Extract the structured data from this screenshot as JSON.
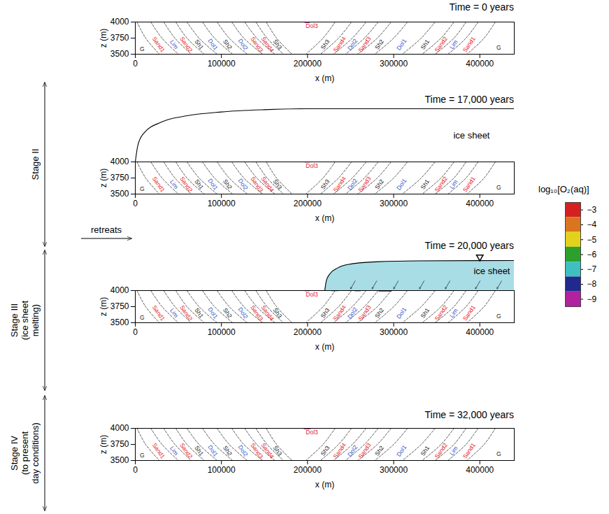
{
  "chart_data": {
    "type": "cross_section_panels",
    "xlabel": "x (m)",
    "ylabel": "z (m)",
    "xlim": [
      0,
      440000
    ],
    "xticks": [
      0,
      100000,
      200000,
      300000,
      400000
    ],
    "ylim": [
      3500,
      4000
    ],
    "yticks": [
      3500,
      3750,
      4000
    ],
    "boundary_z": [
      4000,
      3750,
      3500
    ],
    "boundaries_x": [
      [
        2000,
        12000,
        28000
      ],
      [
        18000,
        31000,
        50000
      ],
      [
        33000,
        46000,
        65000
      ],
      [
        47000,
        60000,
        80000
      ],
      [
        60000,
        74000,
        95000
      ],
      [
        78000,
        92000,
        113000
      ],
      [
        95000,
        109000,
        130000
      ],
      [
        112000,
        126000,
        148000
      ],
      [
        127000,
        141000,
        162000
      ],
      [
        140000,
        153000,
        172000
      ],
      [
        152000,
        164000,
        182000
      ],
      [
        232000,
        218000,
        198000
      ],
      [
        251000,
        236000,
        215000
      ],
      [
        268000,
        252000,
        230000
      ],
      [
        282000,
        266000,
        244000
      ],
      [
        297000,
        281000,
        258000
      ],
      [
        316000,
        300000,
        278000
      ],
      [
        348000,
        332000,
        310000
      ],
      [
        370000,
        355000,
        333000
      ],
      [
        384000,
        370000,
        348000
      ],
      [
        398000,
        384000,
        363000
      ],
      [
        418000,
        405000,
        385000
      ]
    ],
    "formation_labels_left": [
      {
        "text": "Sand1",
        "x": 27000,
        "z": 3650,
        "color": "#e8202a"
      },
      {
        "text": "Lim",
        "x": 45000,
        "z": 3650,
        "color": "#3355cc"
      },
      {
        "text": "Sand2",
        "x": 59000,
        "z": 3650,
        "color": "#e8202a"
      },
      {
        "text": "Sh1",
        "x": 74000,
        "z": 3650,
        "color": "#222222"
      },
      {
        "text": "Dol1",
        "x": 90000,
        "z": 3650,
        "color": "#3355cc"
      },
      {
        "text": "Sh2",
        "x": 107000,
        "z": 3650,
        "color": "#222222"
      },
      {
        "text": "Dol2",
        "x": 125000,
        "z": 3650,
        "color": "#3355cc"
      },
      {
        "text": "Sand3",
        "x": 141000,
        "z": 3650,
        "color": "#e8202a"
      },
      {
        "text": "Sand4",
        "x": 153500,
        "z": 3650,
        "color": "#e8202a"
      },
      {
        "text": "Sh3",
        "x": 165000,
        "z": 3650,
        "color": "#222222"
      }
    ],
    "formation_labels_right": [
      {
        "text": "Sh3",
        "x": 220500,
        "z": 3650,
        "color": "#222222"
      },
      {
        "text": "Sand4",
        "x": 237300,
        "z": 3650,
        "color": "#e8202a"
      },
      {
        "text": "Dol2",
        "x": 252200,
        "z": 3650,
        "color": "#3355cc"
      },
      {
        "text": "Sand3",
        "x": 266400,
        "z": 3650,
        "color": "#e8202a"
      },
      {
        "text": "Sh2",
        "x": 283400,
        "z": 3650,
        "color": "#222222"
      },
      {
        "text": "Dol1",
        "x": 309200,
        "z": 3650,
        "color": "#3355cc"
      },
      {
        "text": "Sh1",
        "x": 336500,
        "z": 3650,
        "color": "#222222"
      },
      {
        "text": "Sand2",
        "x": 355100,
        "z": 3650,
        "color": "#e8202a"
      },
      {
        "text": "Lim",
        "x": 369700,
        "z": 3650,
        "color": "#3355cc"
      },
      {
        "text": "Sand1",
        "x": 387600,
        "z": 3650,
        "color": "#e8202a"
      }
    ],
    "formation_labels_flat": [
      {
        "text": "G",
        "x": 8000,
        "z": 3580,
        "color": "#222222"
      },
      {
        "text": "Dol3",
        "x": 205000,
        "z": 3935,
        "color": "#e8202a"
      },
      {
        "text": "G",
        "x": 422000,
        "z": 3600,
        "color": "#222222"
      }
    ],
    "color_bar": {
      "label": "log₁₀[O₂(aq)]",
      "range": [
        -9.5,
        -2.5
      ],
      "ticks": [
        {
          "value": -3,
          "label": "−3"
        },
        {
          "value": -4,
          "label": "−4"
        },
        {
          "value": -5,
          "label": "−5"
        },
        {
          "value": -6,
          "label": "−6"
        },
        {
          "value": -7,
          "label": "−7"
        },
        {
          "value": -8,
          "label": "−8"
        },
        {
          "value": -9,
          "label": "−9"
        }
      ],
      "colors": [
        "#d62020",
        "#d9741f",
        "#e3d21b",
        "#2ca02c",
        "#3fbfbf",
        "#1f2a8c",
        "#b0229e"
      ]
    },
    "panels": [
      {
        "title": "Time = 0 years",
        "o2_patches": [
          {
            "x0": 197000,
            "x1": 203000,
            "z0": 3980,
            "z1": 4000,
            "log10_o2": -9
          },
          {
            "x0": 436000,
            "x1": 440000,
            "z0": 3992,
            "z1": 4000,
            "log10_o2": -8
          }
        ]
      },
      {
        "title": "Time = 17,000 years",
        "stage": {
          "lines": [
            "Stage II"
          ]
        },
        "ice_sheet": {
          "label": "ice sheet",
          "x": [
            0,
            3000,
            10000,
            30000,
            60000,
            100000,
            150000,
            200000,
            440000
          ],
          "z": [
            4000,
            4260,
            4450,
            4620,
            4720,
            4780,
            4815,
            4830,
            4830
          ]
        },
        "o2_patches": [
          {
            "x0": 197000,
            "x1": 203000,
            "z0": 3985,
            "z1": 4000,
            "log10_o2": -9
          },
          {
            "x0": 436000,
            "x1": 440000,
            "z0": 3992,
            "z1": 4000,
            "log10_o2": -8
          }
        ]
      },
      {
        "title": "Time = 20,000 years",
        "stage": {
          "lines": [
            "Stage III",
            "(ice sheet",
            "melting)"
          ]
        },
        "arrow_label": "retreats",
        "ice_sheet": {
          "label": "ice sheet",
          "color": "#a8dde6",
          "x": [
            220000,
            222000,
            226000,
            235000,
            250000,
            280000,
            330000,
            440000
          ],
          "z": [
            4000,
            4160,
            4260,
            4350,
            4410,
            4445,
            4460,
            4465
          ],
          "recharge_arrows_x": [
            250000,
            275000,
            300000,
            330000,
            360000,
            395000,
            420000
          ],
          "water_table_x": 400000
        },
        "o2_patches": [
          {
            "x0": 197000,
            "x1": 203000,
            "z0": 3985,
            "z1": 4000,
            "log10_o2": -9
          },
          {
            "x0": 222000,
            "x1": 228000,
            "z0": 3990,
            "z1": 4000,
            "log10_o2": -8
          },
          {
            "x0": 236000,
            "x1": 250000,
            "z0": 3992,
            "z1": 4000,
            "log10_o2": -9
          },
          {
            "x0": 255000,
            "x1": 262000,
            "z0": 3985,
            "z1": 4000,
            "log10_o2": -8
          },
          {
            "x0": 262000,
            "x1": 270000,
            "z0": 3990,
            "z1": 4000,
            "log10_o2": -9
          },
          {
            "x0": 283000,
            "x1": 298000,
            "z0": 3978,
            "z1": 4000,
            "log10_o2": -9
          },
          {
            "x0": 298000,
            "x1": 310000,
            "z0": 3993,
            "z1": 4000,
            "log10_o2": -7
          },
          {
            "x0": 320000,
            "x1": 330000,
            "z0": 3990,
            "z1": 4000,
            "log10_o2": -8
          },
          {
            "x0": 345000,
            "x1": 360000,
            "z0": 3993,
            "z1": 4000,
            "log10_o2": -9
          },
          {
            "x0": 380000,
            "x1": 395000,
            "z0": 3994,
            "z1": 4000,
            "log10_o2": -8
          },
          {
            "x0": 437000,
            "x1": 440000,
            "z0": 3990,
            "z1": 4000,
            "log10_o2": -9
          },
          {
            "x0": 228000,
            "x1": 236000,
            "z0": 3985,
            "z1": 4000,
            "log10_o2": -6
          },
          {
            "x0": 290000,
            "x1": 296000,
            "z0": 3990,
            "z1": 4000,
            "log10_o2": -6
          }
        ]
      },
      {
        "title": "Time = 32,000 years",
        "stage": {
          "lines": [
            "Stage IV",
            "(to present",
            "day conditions)"
          ]
        },
        "o2_patches": [
          {
            "x0": 196000,
            "x1": 204000,
            "z0": 3980,
            "z1": 4000,
            "log10_o2": -9
          },
          {
            "x0": 436000,
            "x1": 440000,
            "z0": 3992,
            "z1": 4000,
            "log10_o2": -8
          }
        ]
      }
    ]
  }
}
